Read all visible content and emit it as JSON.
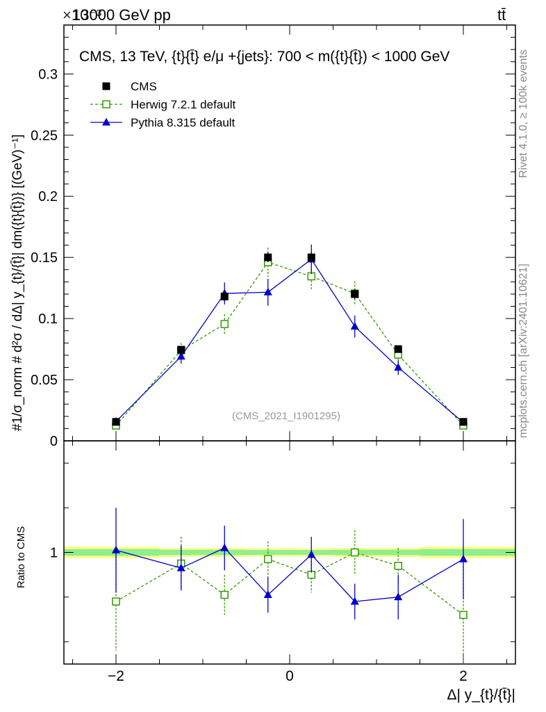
{
  "header": {
    "left": "13000 GeV pp",
    "right": "tt̄",
    "exponent": "×10⁻³"
  },
  "side_labels": {
    "rivet": "Rivet 4.1.0, ≥ 100k events",
    "mcplots": "mcplots.cern.ch [arXiv:2401.10621]"
  },
  "chart_data": {
    "type": "line",
    "title": "CMS, 13 TeV, {t}{t̄} e/μ +{jets}: 700 < m({t}{t̄}) < 1000 GeV",
    "watermark": "(CMS_2021_I1901295)",
    "xlabel": "Δ| y_{t}/{t̄}|",
    "ylabel": "#1/σ_norm # d²σ / dΔ| y_{t}/{t̄}| dm({t}{t̄})} [(GeV)⁻¹]",
    "ratio_ylabel": "Ratio to CMS",
    "xlim": [
      -2.6,
      2.6
    ],
    "ylim": [
      0,
      0.34
    ],
    "ratio_ylim": [
      0.5,
      1.5
    ],
    "x_ticks": [
      -2,
      0,
      2
    ],
    "x_tick_labels": [
      "−2",
      "0",
      "2"
    ],
    "y_ticks": [
      0.05,
      0.1,
      0.15,
      0.2,
      0.25,
      0.3
    ],
    "y_tick_labels": [
      "0.05",
      "0.1",
      "0.15",
      "0.2",
      "0.25",
      "0.3"
    ],
    "y_zero_label": "0",
    "ratio_tick_label": "1",
    "x": [
      -2.0,
      -1.25,
      -0.75,
      -0.25,
      0.25,
      0.75,
      1.25,
      2.0
    ],
    "bin_edges": [
      -2.6,
      -1.5,
      -1.0,
      -0.5,
      0.0,
      0.5,
      1.0,
      1.5,
      2.6
    ],
    "ratio_band_half_width": [
      0.025,
      0.02,
      0.02,
      0.018,
      0.018,
      0.02,
      0.02,
      0.025
    ],
    "legend": [
      "CMS",
      "Herwig 7.2.1 default",
      "Pythia 8.315 default"
    ],
    "series": [
      {
        "name": "CMS",
        "color": "#000000",
        "marker": "square-filled",
        "values": [
          0.0155,
          0.0745,
          0.118,
          0.15,
          0.15,
          0.12,
          0.075,
          0.0155
        ],
        "errors": [
          0.0008,
          0.003,
          0.004,
          0.004,
          0.004,
          0.004,
          0.003,
          0.0008
        ],
        "ratio": [
          1,
          1,
          1,
          1,
          1,
          1,
          1,
          1
        ],
        "ratio_errors": [
          0,
          0,
          0,
          0,
          0,
          0,
          0,
          0
        ]
      },
      {
        "name": "Herwig 7.2.1 default",
        "color": "#339900",
        "marker": "square-open",
        "dashed": true,
        "values": [
          0.0125,
          0.074,
          0.0955,
          0.146,
          0.1345,
          0.1205,
          0.0705,
          0.0125
        ],
        "errors": [
          0.0008,
          0.006,
          0.008,
          0.012,
          0.011,
          0.01,
          0.006,
          0.001
        ],
        "ratio": [
          0.78,
          0.95,
          0.81,
          0.97,
          0.9,
          1.0,
          0.94,
          0.72
        ],
        "ratio_errors": [
          0.22,
          0.12,
          0.09,
          0.08,
          0.08,
          0.1,
          0.08,
          0.22
        ]
      },
      {
        "name": "Pythia 8.315 default",
        "color": "#0000cc",
        "marker": "triangle",
        "values": [
          0.0158,
          0.069,
          0.1205,
          0.1215,
          0.1485,
          0.0935,
          0.06,
          0.015
        ],
        "errors": [
          0.0008,
          0.006,
          0.009,
          0.011,
          0.012,
          0.009,
          0.006,
          0.0008
        ],
        "ratio": [
          1.01,
          0.93,
          1.02,
          0.81,
          0.99,
          0.78,
          0.8,
          0.97
        ],
        "ratio_errors": [
          0.19,
          0.1,
          0.1,
          0.08,
          0.08,
          0.08,
          0.1,
          0.18
        ]
      }
    ]
  }
}
